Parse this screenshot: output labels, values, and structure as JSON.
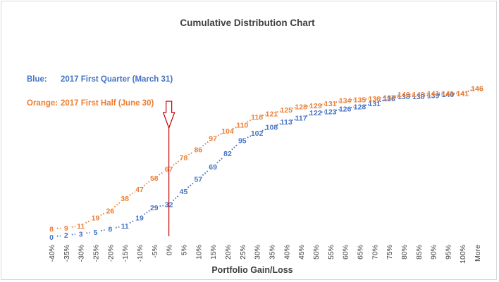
{
  "chart_data": {
    "type": "line",
    "title": "Cumulative Distribution Chart",
    "xlabel": "Portfolio Gain/Loss",
    "ylabel": "",
    "categories": [
      "-40%",
      "-35%",
      "-30%",
      "-25%",
      "-20%",
      "-15%",
      "-10%",
      "-5%",
      "0%",
      "5%",
      "10%",
      "15%",
      "20%",
      "25%",
      "30%",
      "35%",
      "40%",
      "45%",
      "50%",
      "55%",
      "60%",
      "65%",
      "70%",
      "75%",
      "80%",
      "85%",
      "90%",
      "95%",
      "100%",
      "More"
    ],
    "ylim": [
      0,
      150
    ],
    "grid": false,
    "legend": [
      {
        "prefix": "Blue:",
        "text": "2017 First Quarter (March 31)",
        "color": "#4472c4"
      },
      {
        "prefix": "Orange:",
        "text": "2017 First Half (June 30)",
        "color": "#ed7d31"
      }
    ],
    "marker_category": "0%",
    "marker_color": "#c00000",
    "series": [
      {
        "color": "#4472c4",
        "values": [
          0,
          2,
          3,
          5,
          8,
          11,
          19,
          29,
          32,
          45,
          57,
          69,
          82,
          95,
          102,
          108,
          113,
          117,
          122,
          123,
          126,
          128,
          131,
          136,
          138,
          138,
          139,
          140,
          141,
          146
        ]
      },
      {
        "color": "#ed7d31",
        "values": [
          8,
          9,
          11,
          19,
          26,
          38,
          47,
          58,
          67,
          78,
          86,
          97,
          104,
          110,
          118,
          121,
          125,
          128,
          129,
          131,
          134,
          135,
          136,
          137,
          140,
          140,
          141,
          141,
          141,
          146
        ]
      }
    ]
  }
}
